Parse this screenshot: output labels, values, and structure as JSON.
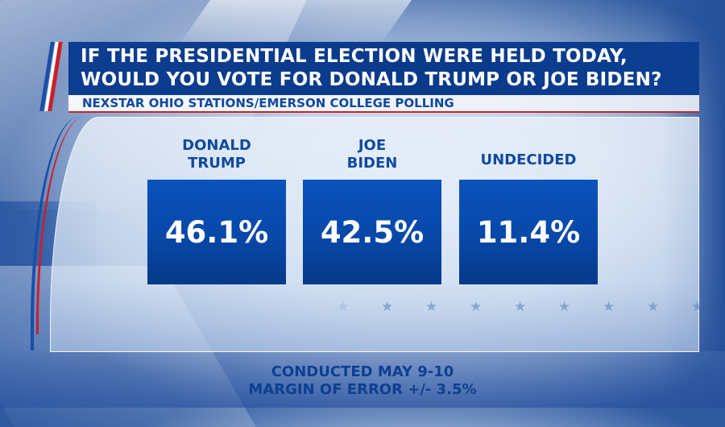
{
  "header": {
    "title_line1": "IF THE PRESIDENTIAL ELECTION WERE HELD TODAY,",
    "title_line2": "WOULD YOU VOTE FOR DONALD TRUMP OR JOE BIDEN?",
    "subtitle": "NEXSTAR OHIO STATIONS/EMERSON COLLEGE POLLING"
  },
  "results": [
    {
      "label_line1": "DONALD",
      "label_line2": "TRUMP",
      "value": "46.1%"
    },
    {
      "label_line1": "JOE",
      "label_line2": "BIDEN",
      "value": "42.5%"
    },
    {
      "label_line1": "UNDECIDED",
      "label_line2": "",
      "value": "11.4%"
    }
  ],
  "footer": {
    "line1": "CONDUCTED MAY 9-10",
    "line2": "MARGIN OF ERROR +/- 3.5%"
  },
  "decor": {
    "star_icon": "star",
    "star_count": 9
  },
  "colors": {
    "primary_blue": "#0a52bd",
    "header_blue": "#0d3d8e",
    "accent_red": "#c9202a"
  }
}
